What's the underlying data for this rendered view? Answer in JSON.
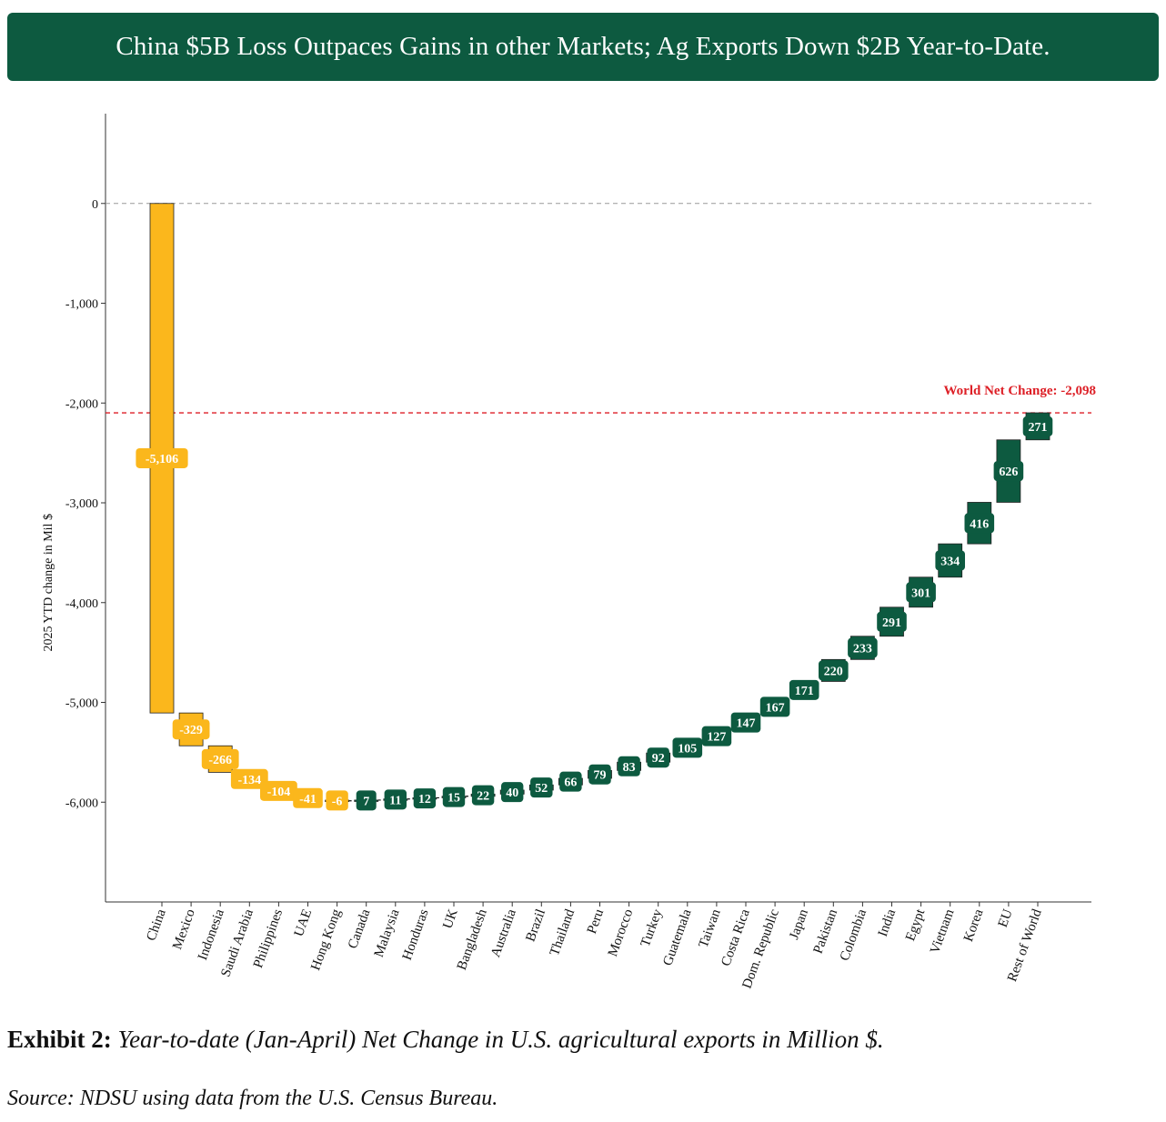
{
  "header": {
    "title": "China $5B Loss Outpaces Gains in other Markets; Ag Exports Down $2B Year-to-Date."
  },
  "caption": {
    "exhibit_label": "Exhibit 2:",
    "description": "Year-to-date (Jan-April) Net Change in U.S. agricultural exports in Million $.",
    "source": "Source: NDSU using data from the U.S. Census Bureau."
  },
  "chart_data": {
    "type": "waterfall",
    "ylabel": "2025 YTD change in Mil $",
    "xlabel": "",
    "ylim": [
      -7000,
      900
    ],
    "yticks": [
      0,
      -1000,
      -2000,
      -3000,
      -4000,
      -5000,
      -6000
    ],
    "ytick_labels": [
      "0",
      "-1,000",
      "-2,000",
      "-3,000",
      "-4,000",
      "-5,000",
      "-6,000"
    ],
    "grid": false,
    "categories": [
      "China",
      "Mexico",
      "Indonesia",
      "Saudi Arabia",
      "Philippines",
      "UAE",
      "Hong Kong",
      "Canada",
      "Malaysia",
      "Honduras",
      "UK",
      "Bangladesh",
      "Australia",
      "Brazil",
      "Thailand",
      "Peru",
      "Morocco",
      "Turkey",
      "Guatemala",
      "Taiwan",
      "Costa Rica",
      "Dom. Republic",
      "Japan",
      "Pakistan",
      "Colombia",
      "India",
      "Egypt",
      "Vietnam",
      "Korea",
      "EU",
      "Rest of World"
    ],
    "values": [
      -5106,
      -329,
      -266,
      -134,
      -104,
      -41,
      -6,
      7,
      11,
      12,
      15,
      22,
      40,
      52,
      66,
      79,
      83,
      92,
      105,
      127,
      147,
      167,
      171,
      220,
      233,
      291,
      301,
      334,
      416,
      626,
      271
    ],
    "value_labels": [
      "-5,106",
      "-329",
      "-266",
      "-134",
      "-104",
      "-41",
      "-6",
      "7",
      "11",
      "12",
      "15",
      "22",
      "40",
      "52",
      "66",
      "79",
      "83",
      "92",
      "105",
      "127",
      "147",
      "167",
      "171",
      "220",
      "233",
      "291",
      "301",
      "334",
      "416",
      "626",
      "271"
    ],
    "reference_lines": [
      {
        "name": "zero",
        "value": 0,
        "color": "#999999",
        "label": ""
      },
      {
        "name": "world-net-change",
        "value": -2098,
        "color": "#dd1f26",
        "label": "World Net Change: -2,098"
      }
    ],
    "colors": {
      "negative": "#fbb71c",
      "positive": "#0d5a40",
      "label_text": "#ffffff"
    }
  }
}
